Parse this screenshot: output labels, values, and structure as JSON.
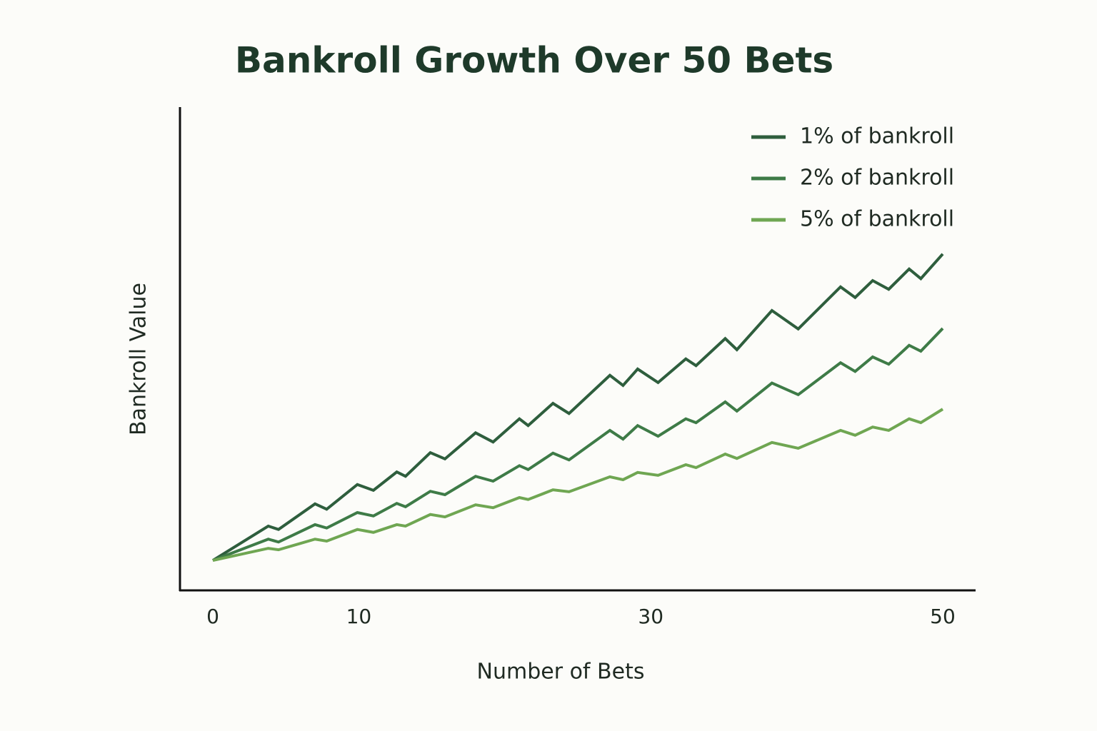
{
  "chart_data": {
    "type": "line",
    "title": "Bankroll Growth Over 50 Bets",
    "x_label": "Number of Bets",
    "y_label": "Bankroll Value",
    "xlim": [
      0,
      50
    ],
    "xticks": [
      0,
      10,
      30,
      50
    ],
    "ylim": [
      0,
      100
    ],
    "legend": "upper right",
    "x": [
      0,
      3.8,
      4.5,
      7.0,
      7.8,
      9.9,
      11.0,
      12.6,
      13.2,
      14.9,
      15.9,
      18.0,
      19.2,
      21.0,
      21.6,
      23.3,
      24.4,
      27.2,
      28.1,
      29.1,
      30.5,
      32.4,
      33.1,
      35.1,
      35.9,
      38.3,
      40.1,
      43.0,
      44.0,
      45.2,
      46.3,
      47.7,
      48.5,
      50
    ],
    "series": [
      {
        "name": "1% of bankroll",
        "color": "#2e5e3d",
        "values": [
          6.2,
          13.3,
          12.6,
          17.9,
          16.8,
          21.9,
          20.7,
          24.5,
          23.6,
          28.5,
          27.2,
          32.6,
          30.7,
          35.5,
          34.1,
          38.7,
          36.6,
          44.5,
          42.4,
          45.8,
          43.0,
          47.9,
          46.5,
          52.1,
          49.8,
          57.9,
          54.1,
          62.8,
          60.6,
          64.1,
          62.3,
          66.5,
          64.5,
          69.6
        ]
      },
      {
        "name": "2% of bankroll",
        "color": "#3e7b47",
        "values": [
          6.2,
          10.6,
          10.0,
          13.6,
          12.9,
          16.1,
          15.4,
          18.0,
          17.3,
          20.5,
          19.8,
          23.6,
          22.6,
          25.8,
          25.0,
          28.4,
          27.0,
          33.1,
          31.3,
          34.1,
          31.9,
          35.5,
          34.7,
          39.0,
          37.1,
          42.9,
          40.5,
          47.1,
          45.3,
          48.3,
          46.8,
          50.7,
          49.5,
          54.2
        ]
      },
      {
        "name": "5% of bankroll",
        "color": "#6fa652",
        "values": [
          6.2,
          8.7,
          8.4,
          10.6,
          10.2,
          12.6,
          12.0,
          13.6,
          13.3,
          15.7,
          15.2,
          17.7,
          17.1,
          19.2,
          18.8,
          20.8,
          20.4,
          23.5,
          22.9,
          24.4,
          23.8,
          26.0,
          25.4,
          28.2,
          27.3,
          30.6,
          29.4,
          33.1,
          32.1,
          33.8,
          33.1,
          35.5,
          34.7,
          37.5
        ]
      }
    ]
  }
}
